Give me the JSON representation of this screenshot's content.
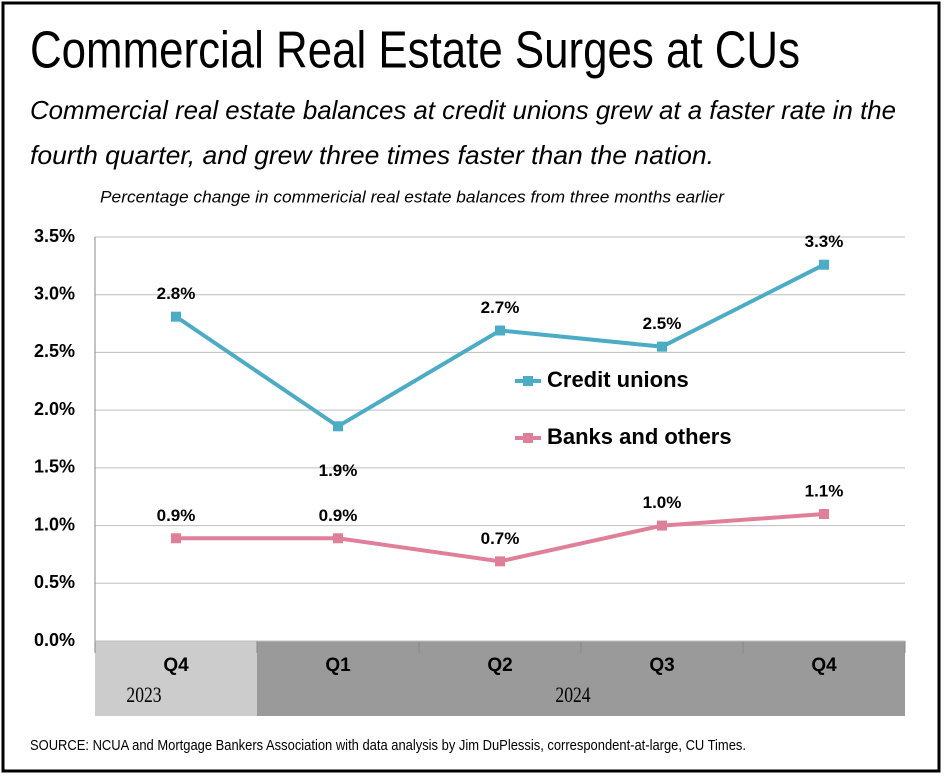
{
  "chart_data": {
    "type": "line",
    "title": "Commercial Real Estate Surges at CUs",
    "subtitle": [
      "Commercial real estate balances at credit unions grew at a faster rate in the",
      "fourth quarter, and grew three times faster than the nation."
    ],
    "y_axis_label": "Percentage change in commericial real estate balances from three months earlier",
    "groups": [
      {
        "label": "2023",
        "categories": [
          "Q4"
        ]
      },
      {
        "label": "2024",
        "categories": [
          "Q1",
          "Q2",
          "Q3",
          "Q4"
        ]
      }
    ],
    "series": [
      {
        "name": "Credit unions",
        "color": "#4bacc6",
        "values": [
          2.81,
          1.86,
          2.69,
          2.55,
          3.26
        ],
        "value_labels": [
          "2.8%",
          "1.9%",
          "2.7%",
          "2.5%",
          "3.3%"
        ]
      },
      {
        "name": "Banks and others",
        "color": "#e07f99",
        "values": [
          0.89,
          0.89,
          0.69,
          1.0,
          1.1
        ],
        "value_labels": [
          "0.9%",
          "0.9%",
          "0.7%",
          "1.0%",
          "1.1%"
        ]
      }
    ],
    "ylim": [
      0,
      3.5
    ],
    "yticks": [
      {
        "value": 0,
        "label": "0.0%"
      },
      {
        "value": 0.5,
        "label": "0.5%"
      },
      {
        "value": 1,
        "label": "1.0%"
      },
      {
        "value": 1.5,
        "label": "1.5%"
      },
      {
        "value": 2,
        "label": "2.0%"
      },
      {
        "value": 2.5,
        "label": "2.5%"
      },
      {
        "value": 3,
        "label": "3.0%"
      },
      {
        "value": 3.5,
        "label": "3.5%"
      }
    ],
    "grid": true,
    "legend": "center",
    "source": "SOURCE: NCUA and Mortgage Bankers Association with data analysis by Jim DuPlessis, correspondent-at-large, CU Times."
  }
}
